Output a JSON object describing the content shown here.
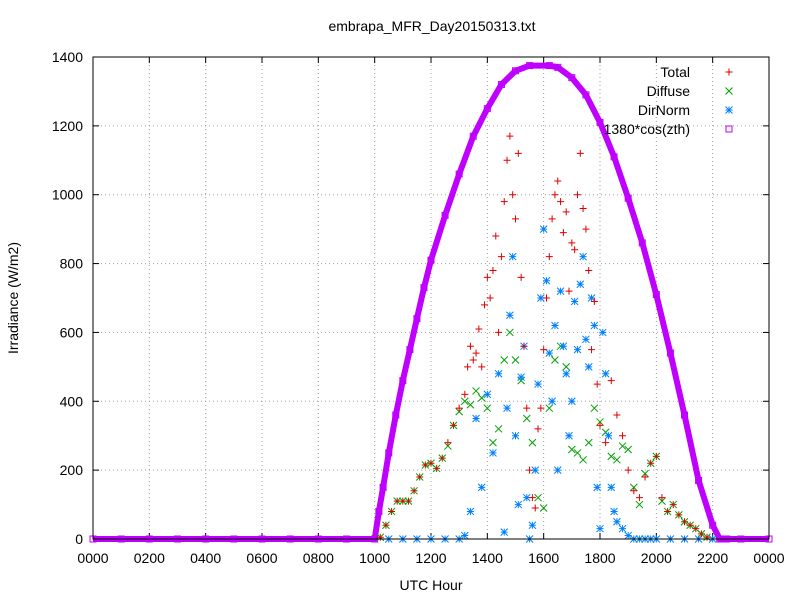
{
  "chart_data": {
    "type": "scatter",
    "title": "embrapa_MFR_Day20150313.txt",
    "xlabel": "UTC Hour",
    "ylabel": "Irradiance (W/m2)",
    "xlim": [
      0,
      24
    ],
    "ylim": [
      0,
      1400
    ],
    "grid": true,
    "legend_position": "top-right",
    "x_tick_labels": [
      "0000",
      "0200",
      "0400",
      "0600",
      "0800",
      "1000",
      "1200",
      "1400",
      "1600",
      "1800",
      "2000",
      "2200",
      "0000"
    ],
    "y_tick_labels": [
      "0",
      "200",
      "400",
      "600",
      "800",
      "1000",
      "1200",
      "1400"
    ],
    "series": [
      {
        "name": "Total",
        "color": "#e00000",
        "marker": "plus",
        "x": [
          10.2,
          10.4,
          10.6,
          10.8,
          11.0,
          11.2,
          11.4,
          11.6,
          11.8,
          12.0,
          12.2,
          12.4,
          12.6,
          12.8,
          13.0,
          13.2,
          13.3,
          13.4,
          13.5,
          13.6,
          13.7,
          13.8,
          13.9,
          14.0,
          14.1,
          14.2,
          14.3,
          14.4,
          14.5,
          14.6,
          14.7,
          14.8,
          14.9,
          15.0,
          15.1,
          15.2,
          15.3,
          15.4,
          15.5,
          15.6,
          15.7,
          15.8,
          15.9,
          16.0,
          16.1,
          16.2,
          16.3,
          16.4,
          16.5,
          16.6,
          16.7,
          16.8,
          16.9,
          17.0,
          17.1,
          17.2,
          17.3,
          17.4,
          17.5,
          17.6,
          17.7,
          17.8,
          17.9,
          18.0,
          18.2,
          18.4,
          18.6,
          18.8,
          19.0,
          19.2,
          19.4,
          19.6,
          19.8,
          20.0,
          20.2,
          20.4,
          20.6,
          20.8,
          21.0,
          21.2,
          21.4,
          21.6,
          21.8
        ],
        "values": [
          5,
          40,
          80,
          110,
          110,
          110,
          140,
          180,
          215,
          220,
          205,
          235,
          280,
          330,
          380,
          420,
          500,
          560,
          520,
          540,
          610,
          500,
          680,
          760,
          700,
          780,
          880,
          600,
          820,
          980,
          1100,
          1170,
          1000,
          930,
          1120,
          760,
          560,
          380,
          200,
          120,
          90,
          320,
          380,
          550,
          700,
          820,
          930,
          1000,
          1040,
          980,
          890,
          950,
          720,
          860,
          840,
          1000,
          1120,
          960,
          900,
          780,
          550,
          690,
          450,
          330,
          280,
          460,
          360,
          300,
          200,
          140,
          120,
          180,
          220,
          240,
          120,
          80,
          100,
          70,
          50,
          40,
          30,
          15,
          5
        ]
      },
      {
        "name": "Diffuse",
        "color": "#00a000",
        "marker": "cross",
        "x": [
          10.2,
          10.4,
          10.6,
          10.8,
          11.0,
          11.2,
          11.4,
          11.6,
          11.8,
          12.0,
          12.2,
          12.4,
          12.6,
          12.8,
          13.0,
          13.2,
          13.4,
          13.6,
          13.8,
          14.0,
          14.2,
          14.4,
          14.6,
          14.8,
          15.0,
          15.2,
          15.4,
          15.6,
          15.8,
          16.0,
          16.2,
          16.4,
          16.6,
          16.8,
          17.0,
          17.2,
          17.4,
          17.6,
          17.8,
          18.0,
          18.2,
          18.4,
          18.6,
          18.8,
          19.0,
          19.2,
          19.4,
          19.6,
          19.8,
          20.0,
          20.2,
          20.4,
          20.6,
          20.8,
          21.0,
          21.2,
          21.4,
          21.6,
          21.8
        ],
        "values": [
          5,
          40,
          80,
          110,
          110,
          110,
          140,
          180,
          215,
          220,
          205,
          235,
          270,
          330,
          370,
          400,
          390,
          430,
          410,
          380,
          280,
          320,
          520,
          600,
          520,
          460,
          350,
          280,
          120,
          90,
          380,
          520,
          560,
          500,
          260,
          250,
          230,
          280,
          380,
          340,
          310,
          240,
          230,
          270,
          260,
          150,
          100,
          190,
          220,
          240,
          110,
          80,
          100,
          70,
          50,
          40,
          30,
          15,
          5
        ]
      },
      {
        "name": "DirNorm",
        "color": "#0080ff",
        "marker": "star",
        "x": [
          10.5,
          11.0,
          11.5,
          12.0,
          12.5,
          13.0,
          13.2,
          13.4,
          13.6,
          13.8,
          14.0,
          14.2,
          14.4,
          14.6,
          14.7,
          14.8,
          14.9,
          15.0,
          15.1,
          15.2,
          15.3,
          15.4,
          15.5,
          15.6,
          15.7,
          15.8,
          15.9,
          16.0,
          16.1,
          16.2,
          16.3,
          16.4,
          16.5,
          16.6,
          16.7,
          16.8,
          16.9,
          17.0,
          17.1,
          17.2,
          17.3,
          17.4,
          17.5,
          17.6,
          17.7,
          17.8,
          17.9,
          18.0,
          18.1,
          18.2,
          18.3,
          18.4,
          18.5,
          18.6,
          18.8,
          19.0,
          19.2,
          19.4,
          19.6,
          19.8,
          20.0,
          20.5,
          21.0,
          21.5,
          22.0
        ],
        "values": [
          0,
          0,
          0,
          0,
          0,
          0,
          10,
          80,
          350,
          150,
          420,
          250,
          480,
          20,
          380,
          650,
          820,
          300,
          100,
          470,
          560,
          120,
          0,
          40,
          200,
          450,
          700,
          900,
          750,
          540,
          400,
          620,
          200,
          720,
          560,
          480,
          300,
          400,
          690,
          550,
          740,
          820,
          580,
          500,
          700,
          620,
          150,
          30,
          600,
          480,
          300,
          150,
          80,
          50,
          30,
          10,
          0,
          0,
          0,
          0,
          0,
          0,
          0,
          0,
          0
        ]
      },
      {
        "name": "1380*cos(zth)",
        "color": "#c000ff",
        "marker": "square",
        "x": [
          0,
          1,
          2,
          3,
          4,
          5,
          6,
          7,
          8,
          9,
          10.0,
          10.15,
          10.3,
          10.5,
          10.75,
          11.0,
          11.25,
          11.5,
          11.75,
          12.0,
          12.5,
          13.0,
          13.5,
          14.0,
          14.5,
          15.0,
          15.5,
          16.2,
          16.5,
          17.0,
          17.5,
          18.0,
          18.5,
          19.0,
          19.5,
          20.0,
          20.5,
          21.0,
          21.5,
          22.0,
          22.25,
          22.4,
          22.5,
          23.0,
          24.0
        ],
        "values": [
          0,
          0,
          0,
          0,
          0,
          0,
          0,
          0,
          0,
          0,
          0,
          80,
          150,
          250,
          360,
          460,
          550,
          640,
          730,
          810,
          940,
          1060,
          1170,
          1250,
          1320,
          1360,
          1375,
          1375,
          1370,
          1340,
          1290,
          1210,
          1110,
          990,
          860,
          710,
          540,
          360,
          170,
          40,
          0,
          0,
          0,
          0,
          0
        ]
      }
    ]
  }
}
